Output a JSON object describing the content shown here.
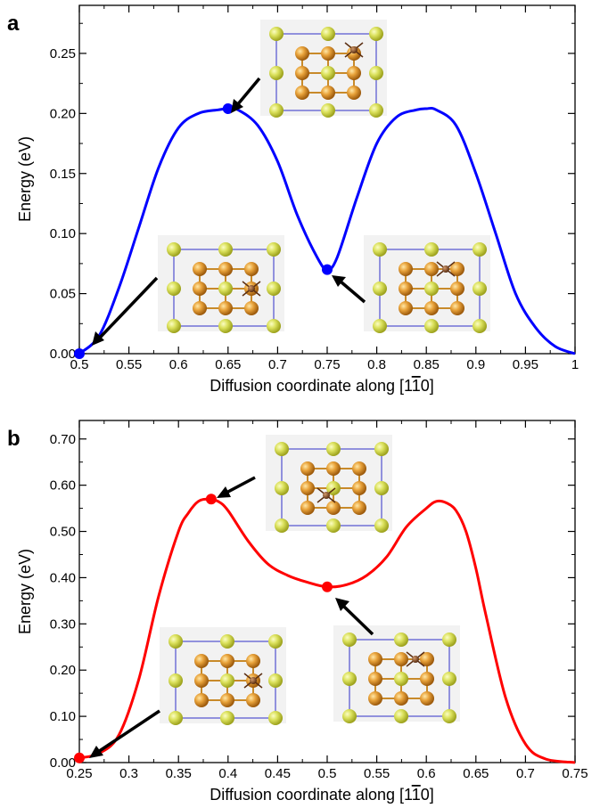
{
  "chart_data": [
    {
      "panel": "a",
      "type": "line",
      "xlabel_prefix": "Diffusion coordinate along [1",
      "xlabel_bar": "1",
      "xlabel_suffix": "0]",
      "ylabel": "Energy (eV)",
      "xlim": [
        0.5,
        1.0
      ],
      "ylim": [
        0.0,
        0.29
      ],
      "xticks": [
        0.5,
        0.55,
        0.6,
        0.65,
        0.7,
        0.75,
        0.8,
        0.85,
        0.9,
        0.95,
        1.0
      ],
      "xtick_labels": [
        "0.5",
        "0.55",
        "0.6",
        "0.65",
        "0.7",
        "0.75",
        "0.8",
        "0.85",
        "0.9",
        "0.95",
        "1"
      ],
      "yticks": [
        0.0,
        0.05,
        0.1,
        0.15,
        0.2,
        0.25
      ],
      "ytick_labels": [
        "0.00",
        "0.05",
        "0.10",
        "0.15",
        "0.20",
        "0.25"
      ],
      "grid": false,
      "color": "#0000ff",
      "series": [
        {
          "x": [
            0.5,
            0.52,
            0.54,
            0.56,
            0.58,
            0.6,
            0.62,
            0.64,
            0.65,
            0.66,
            0.68,
            0.7,
            0.72,
            0.74,
            0.75,
            0.76,
            0.78,
            0.8,
            0.82,
            0.84,
            0.85,
            0.86,
            0.88,
            0.9,
            0.92,
            0.94,
            0.96,
            0.98,
            1.0
          ],
          "y": [
            0.0,
            0.015,
            0.055,
            0.105,
            0.155,
            0.188,
            0.2,
            0.203,
            0.204,
            0.203,
            0.19,
            0.16,
            0.115,
            0.08,
            0.07,
            0.08,
            0.13,
            0.175,
            0.197,
            0.203,
            0.204,
            0.203,
            0.19,
            0.15,
            0.1,
            0.05,
            0.022,
            0.006,
            0.0
          ]
        }
      ],
      "markers": [
        {
          "x": 0.5,
          "y": 0.0
        },
        {
          "x": 0.65,
          "y": 0.204
        },
        {
          "x": 0.75,
          "y": 0.07
        }
      ]
    },
    {
      "panel": "b",
      "type": "line",
      "xlabel_prefix": "Diffusion coordinate along [1",
      "xlabel_bar": "1",
      "xlabel_suffix": "0]",
      "ylabel": "Energy (eV)",
      "xlim": [
        0.25,
        0.75
      ],
      "ylim": [
        0.0,
        0.74
      ],
      "xticks": [
        0.25,
        0.3,
        0.35,
        0.4,
        0.45,
        0.5,
        0.55,
        0.6,
        0.65,
        0.7,
        0.75
      ],
      "xtick_labels": [
        "0.25",
        "0.3",
        "0.35",
        "0.4",
        "0.45",
        "0.5",
        "0.55",
        "0.6",
        "0.65",
        "0.7",
        "0.75"
      ],
      "yticks": [
        0.0,
        0.1,
        0.2,
        0.3,
        0.4,
        0.5,
        0.6,
        0.7
      ],
      "ytick_labels": [
        "0.00",
        "0.10",
        "0.20",
        "0.30",
        "0.40",
        "0.50",
        "0.60",
        "0.70"
      ],
      "grid": false,
      "color": "#ff0000",
      "series": [
        {
          "x": [
            0.25,
            0.27,
            0.29,
            0.31,
            0.33,
            0.35,
            0.36,
            0.37,
            0.38,
            0.39,
            0.4,
            0.42,
            0.44,
            0.46,
            0.48,
            0.5,
            0.52,
            0.54,
            0.56,
            0.58,
            0.6,
            0.61,
            0.62,
            0.63,
            0.64,
            0.65,
            0.66,
            0.68,
            0.7,
            0.72,
            0.75
          ],
          "y": [
            0.01,
            0.02,
            0.06,
            0.18,
            0.36,
            0.5,
            0.54,
            0.565,
            0.57,
            0.565,
            0.545,
            0.48,
            0.43,
            0.405,
            0.39,
            0.38,
            0.385,
            0.405,
            0.445,
            0.51,
            0.55,
            0.565,
            0.562,
            0.545,
            0.5,
            0.42,
            0.32,
            0.14,
            0.04,
            0.008,
            0.0
          ]
        }
      ],
      "markers": [
        {
          "x": 0.25,
          "y": 0.01
        },
        {
          "x": 0.383,
          "y": 0.57
        },
        {
          "x": 0.5,
          "y": 0.38
        }
      ]
    }
  ]
}
